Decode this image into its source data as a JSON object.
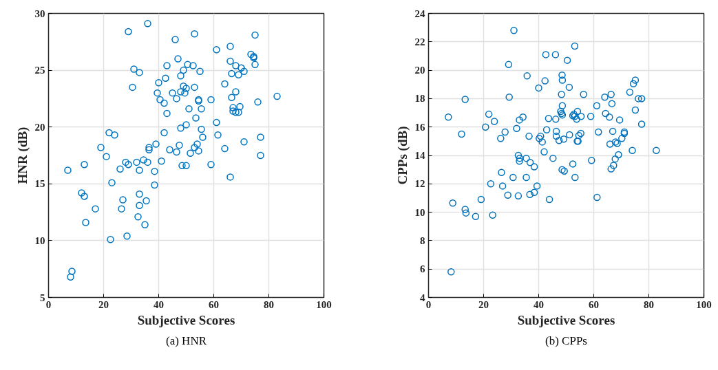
{
  "chart_data": [
    {
      "type": "scatter",
      "xlabel": "Subjective Scores",
      "ylabel": "HNR (dB)",
      "annotations": [
        "(a) HNR"
      ],
      "marker": "circle",
      "grid": true,
      "xlim": [
        0,
        100
      ],
      "ylim": [
        5,
        30
      ],
      "xticks": [
        0,
        20,
        40,
        60,
        80,
        100
      ],
      "yticks": [
        5,
        10,
        15,
        20,
        25,
        30
      ],
      "series": [
        {
          "color": "#0072bd",
          "x": [
            7,
            8,
            8.5,
            12,
            13,
            13,
            13.5,
            17,
            19,
            21,
            22,
            22.5,
            23,
            24,
            26,
            26.5,
            27,
            28,
            28.5,
            29,
            29,
            30.5,
            31,
            32,
            32.5,
            33,
            33,
            33,
            33,
            34.5,
            35,
            35.5,
            36,
            36,
            36.5,
            36.5,
            38.5,
            38.5,
            39,
            39.5,
            40,
            40.5,
            41,
            42,
            42,
            42.5,
            43,
            43,
            44,
            45,
            46,
            46.5,
            46.5,
            47,
            47.5,
            48,
            48,
            48,
            48.5,
            49,
            49,
            49.5,
            50,
            50,
            50,
            50.5,
            51,
            51.5,
            52.5,
            53,
            53,
            53,
            53.5,
            54,
            54.5,
            54.5,
            54.5,
            55,
            55.5,
            55.5,
            56,
            59,
            59,
            61,
            61,
            61.5,
            64,
            64,
            66,
            66,
            66,
            66.5,
            66.5,
            67,
            67,
            68,
            68,
            68,
            69,
            69,
            69.5,
            70,
            71,
            71,
            73.5,
            74.5,
            74.5,
            75,
            75,
            76,
            77,
            77,
            83
          ],
          "values": [
            16.2,
            6.8,
            7.3,
            14.2,
            13.9,
            16.7,
            11.6,
            12.8,
            18.2,
            17.4,
            19.5,
            10.1,
            15.1,
            19.3,
            16.3,
            12.8,
            13.6,
            16.9,
            10.4,
            28.4,
            16.7,
            23.5,
            25.1,
            16.9,
            12.1,
            14.1,
            13.1,
            24.8,
            16.2,
            17.1,
            11.4,
            13.5,
            29.1,
            16.9,
            18.2,
            18.0,
            16.1,
            14.9,
            18.5,
            23.0,
            23.9,
            22.4,
            17.0,
            22.1,
            19.5,
            24.3,
            25.4,
            21.2,
            18.0,
            23.0,
            27.7,
            22.5,
            17.8,
            26.0,
            18.4,
            23.1,
            24.5,
            19.9,
            16.6,
            23.6,
            25.0,
            23.0,
            23.4,
            20.2,
            16.6,
            25.5,
            21.6,
            17.7,
            25.4,
            28.2,
            23.5,
            18.2,
            20.8,
            18.5,
            22.4,
            22.3,
            17.9,
            24.9,
            21.6,
            19.8,
            19.1,
            22.4,
            16.7,
            26.8,
            20.4,
            19.3,
            23.8,
            18.1,
            27.1,
            25.8,
            15.6,
            24.7,
            22.6,
            21.7,
            21.4,
            25.4,
            23.1,
            21.3,
            24.6,
            21.3,
            21.8,
            25.2,
            24.9,
            18.7,
            26.4,
            26.1,
            26.2,
            28.1,
            25.5,
            22.2,
            19.1,
            17.5,
            22.7
          ]
        }
      ]
    },
    {
      "type": "scatter",
      "xlabel": "Subjective Scores",
      "ylabel": "CPPs (dB)",
      "annotations": [
        "(b) CPPs"
      ],
      "marker": "circle",
      "grid": true,
      "xlim": [
        0,
        100
      ],
      "ylim": [
        4,
        24
      ],
      "xticks": [
        0,
        20,
        40,
        60,
        80,
        100
      ],
      "yticks": [
        4,
        6,
        8,
        10,
        12,
        14,
        16,
        18,
        20,
        22,
        24
      ],
      "series": [
        {
          "color": "#0072bd",
          "x": [
            7.2,
            8.2,
            8.8,
            12,
            13.3,
            13.3,
            13.6,
            17.1,
            19.1,
            20.7,
            21.9,
            22.6,
            23.3,
            23.9,
            26.2,
            26.5,
            26.9,
            27.8,
            28.8,
            29.1,
            29.3,
            30.7,
            31,
            32,
            32.6,
            32.6,
            33,
            34.3,
            33,
            33.1,
            35.5,
            35.5,
            35.8,
            36.5,
            36.8,
            38.4,
            36.9,
            38.4,
            39.4,
            40,
            40.2,
            40.7,
            41.3,
            42,
            42.3,
            42.6,
            42.9,
            43.6,
            43.9,
            45.2,
            46.1,
            46.2,
            46.4,
            46.4,
            47.4,
            48.3,
            48.5,
            48.6,
            48.5,
            49.3,
            48,
            48.3,
            48.6,
            48.6,
            49.1,
            50.4,
            53.1,
            51.1,
            52.8,
            53.1,
            54.1,
            53.8,
            55.4,
            52.4,
            56.3,
            58.9,
            61.1,
            64,
            66.3,
            66.6,
            64.3,
            65.7,
            69.4,
            73.1,
            74.4,
            75.1,
            76.2,
            77.4,
            75.1,
            77.4,
            51.2,
            54,
            54.3,
            55.3,
            54.6,
            61.7,
            66.9,
            71.1,
            71.1,
            65.9,
            67.9,
            68.5,
            70.2,
            74,
            82.7,
            59.2,
            69,
            67.8,
            67.2,
            66.3,
            52.4,
            53.2,
            61.2
          ],
          "values": [
            16.7,
            5.8,
            10.65,
            15.5,
            17.95,
            10.2,
            9.95,
            9.7,
            10.9,
            16,
            16.9,
            12,
            9.8,
            16.4,
            15.2,
            12.8,
            11.85,
            15.65,
            11.2,
            20.4,
            18.1,
            12.45,
            22.8,
            15.9,
            14,
            11.15,
            16.5,
            16.7,
            13.6,
            13.8,
            13.8,
            12.45,
            19.6,
            15.35,
            11.25,
            11.4,
            13.5,
            13.2,
            11.85,
            18.75,
            15.2,
            15.35,
            14.95,
            14.25,
            19.25,
            21.1,
            15.8,
            16.6,
            10.9,
            13.8,
            21.1,
            16.55,
            15.7,
            15.35,
            15.05,
            18.3,
            19.65,
            19.3,
            13,
            12.9,
            17.1,
            16.95,
            16.85,
            17.5,
            15.15,
            20.7,
            21.7,
            18.8,
            16.9,
            16.75,
            17.1,
            16.55,
            16.75,
            16.8,
            18.3,
            16.75,
            17.5,
            18.1,
            18.3,
            17.65,
            16.95,
            16.7,
            16.5,
            18.45,
            19.05,
            19.3,
            18,
            18,
            17.2,
            16.2,
            15.45,
            15,
            15,
            15.55,
            15.4,
            15.65,
            15.7,
            15.65,
            15.55,
            14.8,
            14.95,
            14.85,
            15.2,
            14.35,
            14.35,
            13.65,
            14.05,
            13.75,
            13.3,
            13.05,
            13.4,
            12.45,
            11.05
          ]
        }
      ]
    }
  ]
}
